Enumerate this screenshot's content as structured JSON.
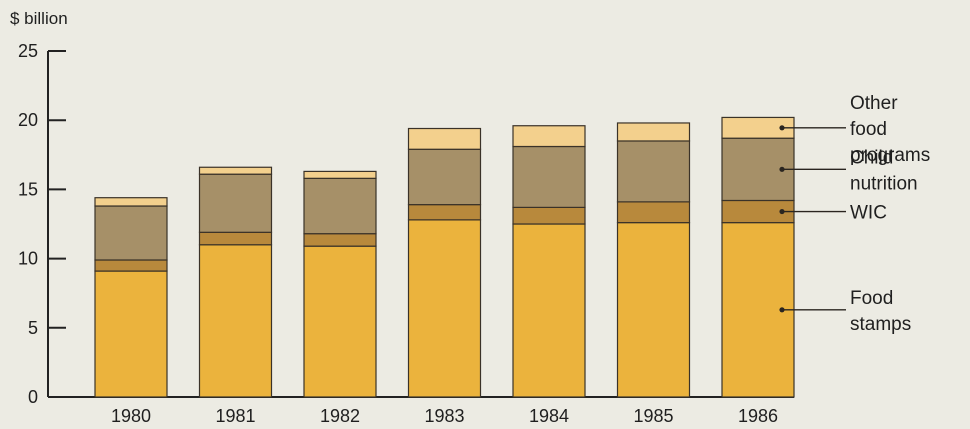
{
  "chart_data": {
    "type": "bar",
    "stacked": true,
    "ylabel": "$ billion",
    "ylim": [
      0,
      25
    ],
    "yticks": [
      0,
      5,
      10,
      15,
      20,
      25
    ],
    "categories": [
      "1980",
      "1981",
      "1982",
      "1983",
      "1984",
      "1985",
      "1986"
    ],
    "series": [
      {
        "name": "Food stamps",
        "color": "#ebb33d",
        "values": [
          9.1,
          11.0,
          10.9,
          12.8,
          12.5,
          12.6,
          12.6
        ]
      },
      {
        "name": "WIC",
        "color": "#b8893c",
        "values": [
          0.8,
          0.9,
          0.9,
          1.1,
          1.2,
          1.5,
          1.6
        ]
      },
      {
        "name": "Child nutrition",
        "color": "#a69068",
        "values": [
          3.9,
          4.2,
          4.0,
          4.0,
          4.4,
          4.4,
          4.5
        ]
      },
      {
        "name": "Other food programs",
        "color": "#f3d08d",
        "values": [
          0.6,
          0.5,
          0.5,
          1.5,
          1.5,
          1.3,
          1.5
        ]
      }
    ],
    "legend": {
      "placement": "right",
      "entries": [
        {
          "series": "Other food programs",
          "lines": [
            "Other",
            "food",
            "programs"
          ]
        },
        {
          "series": "Child nutrition",
          "lines": [
            "Child",
            "nutrition"
          ]
        },
        {
          "series": "WIC",
          "lines": [
            "WIC"
          ]
        },
        {
          "series": "Food stamps",
          "lines": [
            "Food",
            "stamps"
          ]
        }
      ]
    }
  }
}
